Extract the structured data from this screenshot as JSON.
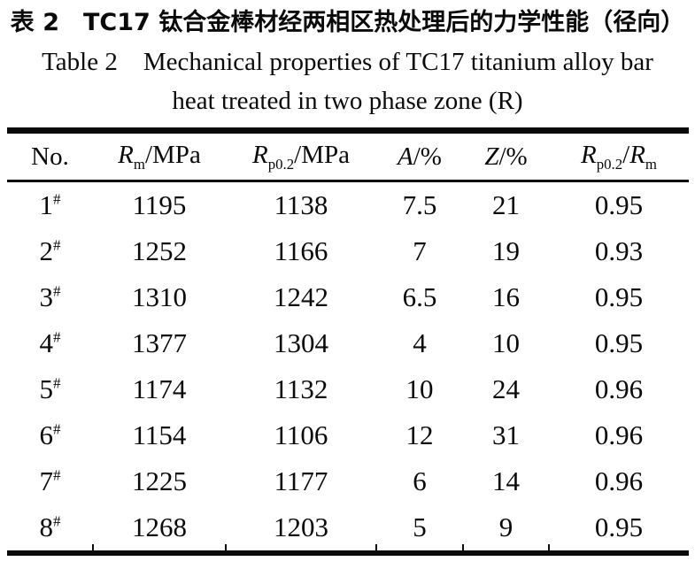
{
  "titles": {
    "chinese": "表 2 TC17 钛合金棒材经两相区热处理后的力学性能（径向）",
    "english_line1": "Table 2 Mechanical properties of TC17 titanium alloy bar",
    "english_line2": "heat treated in two phase zone (R)"
  },
  "table": {
    "headers": {
      "no": "No.",
      "rm": {
        "sym": "R",
        "sub": "m",
        "rest": "/MPa"
      },
      "rp02": {
        "sym": "R",
        "sub": "p0.2",
        "rest": "/MPa"
      },
      "a": {
        "sym": "A",
        "rest": "/%"
      },
      "z": {
        "sym": "Z",
        "rest": "/%"
      },
      "ratio": {
        "sym1": "R",
        "sub1": "p0.2",
        "sep": "/",
        "sym2": "R",
        "sub2": "m"
      }
    },
    "rows": [
      {
        "no": "1",
        "mark": "#",
        "rm": "1195",
        "rp02": "1138",
        "a": "7.5",
        "z": "21",
        "ratio": "0.95"
      },
      {
        "no": "2",
        "mark": "#",
        "rm": "1252",
        "rp02": "1166",
        "a": "7",
        "z": "19",
        "ratio": "0.93"
      },
      {
        "no": "3",
        "mark": "#",
        "rm": "1310",
        "rp02": "1242",
        "a": "6.5",
        "z": "16",
        "ratio": "0.95"
      },
      {
        "no": "4",
        "mark": "#",
        "rm": "1377",
        "rp02": "1304",
        "a": "4",
        "z": "10",
        "ratio": "0.95"
      },
      {
        "no": "5",
        "mark": "#",
        "rm": "1174",
        "rp02": "1132",
        "a": "10",
        "z": "24",
        "ratio": "0.96"
      },
      {
        "no": "6",
        "mark": "#",
        "rm": "1154",
        "rp02": "1106",
        "a": "12",
        "z": "31",
        "ratio": "0.96"
      },
      {
        "no": "7",
        "mark": "#",
        "rm": "1225",
        "rp02": "1177",
        "a": "6",
        "z": "14",
        "ratio": "0.96"
      },
      {
        "no": "8",
        "mark": "#",
        "rm": "1268",
        "rp02": "1203",
        "a": "5",
        "z": "9",
        "ratio": "0.95"
      }
    ]
  },
  "colors": {
    "text": "#0a0a0a",
    "background": "#ffffff",
    "rule": "#0a0a0a"
  }
}
